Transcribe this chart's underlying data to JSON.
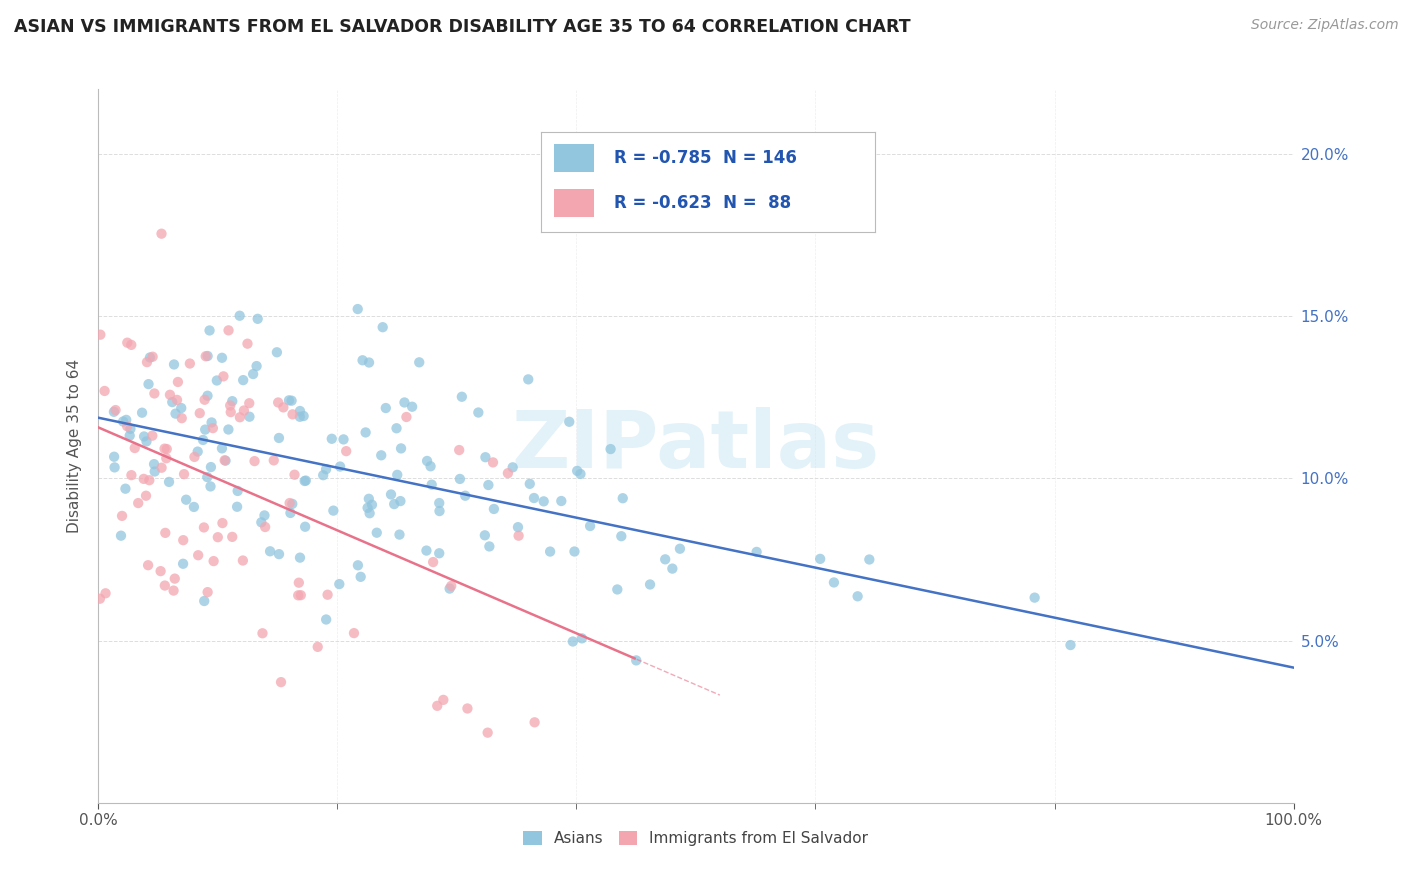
{
  "title": "ASIAN VS IMMIGRANTS FROM EL SALVADOR DISABILITY AGE 35 TO 64 CORRELATION CHART",
  "source": "Source: ZipAtlas.com",
  "ylabel": "Disability Age 35 to 64",
  "legend1_label": "Asians",
  "legend2_label": "Immigrants from El Salvador",
  "R1": -0.785,
  "N1": 146,
  "R2": -0.623,
  "N2": 88,
  "color_asian": "#92c5de",
  "color_salvador": "#f4a6b0",
  "line_color_asian": "#4472c4",
  "line_color_salvador": "#e8728a",
  "watermark": "ZIPatlas",
  "xmin": 0.0,
  "xmax": 100.0,
  "ymin": 0.0,
  "ymax": 22.0,
  "seed_asian": 42,
  "seed_salvador": 77
}
